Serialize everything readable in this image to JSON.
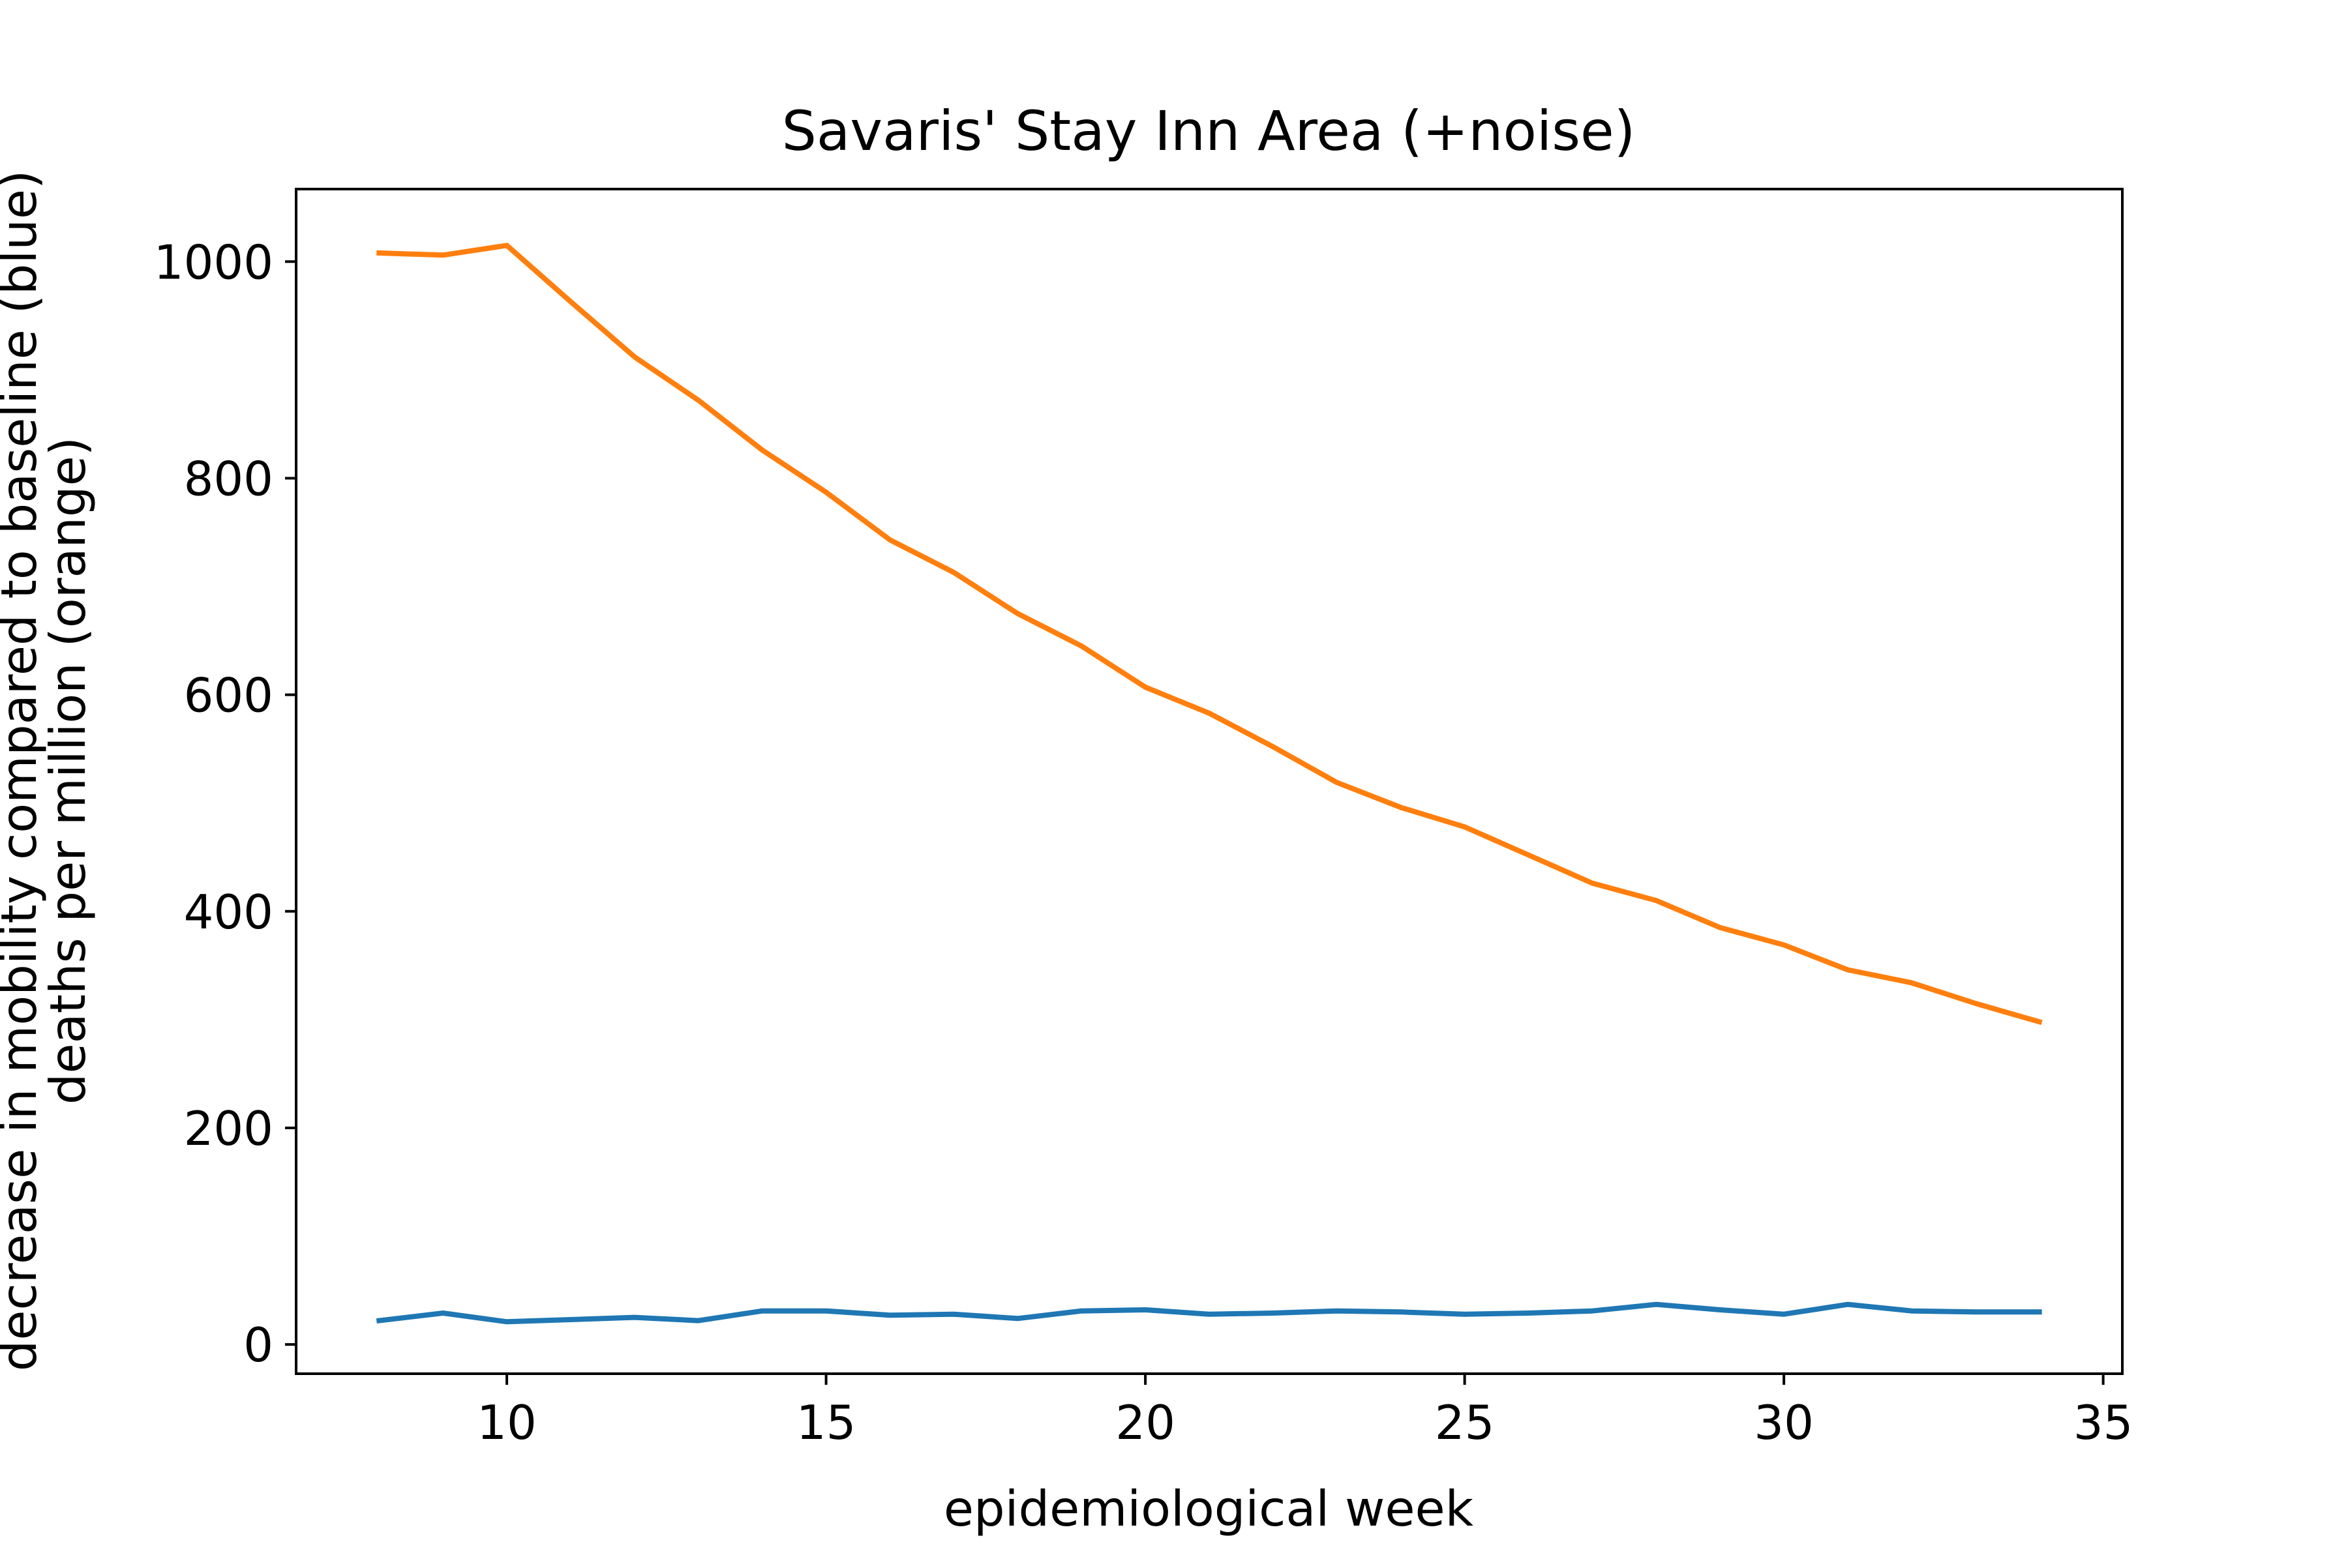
{
  "chart_data": {
    "type": "line",
    "title": "Savaris' Stay Inn Area (+noise)",
    "xlabel": "epidemiological week",
    "ylabel_line1": "decrease in mobility compared to baseline (blue)",
    "ylabel_line2": "deaths per million (orange)",
    "xlim": [
      6.7,
      35.3
    ],
    "ylim": [
      -27,
      1067
    ],
    "xticks": [
      10,
      15,
      20,
      25,
      30,
      35
    ],
    "yticks": [
      0,
      200,
      400,
      600,
      800,
      1000
    ],
    "grid": false,
    "x": [
      8,
      9,
      10,
      11,
      12,
      13,
      14,
      15,
      16,
      17,
      18,
      19,
      20,
      21,
      22,
      23,
      24,
      25,
      26,
      27,
      28,
      29,
      30,
      31,
      32,
      33,
      34
    ],
    "series": [
      {
        "color": "#ff7f0e",
        "values": [
          1008,
          1006,
          1015,
          963,
          912,
          872,
          826,
          787,
          743,
          713,
          675,
          645,
          607,
          583,
          552,
          519,
          496,
          478,
          452,
          426,
          410,
          385,
          369,
          346,
          334,
          315,
          298
        ]
      },
      {
        "color": "#1f77b4",
        "values": [
          22,
          29,
          21,
          23,
          25,
          22,
          31,
          31,
          27,
          28,
          24,
          31,
          32,
          28,
          29,
          31,
          30,
          28,
          29,
          31,
          37,
          32,
          28,
          37,
          31,
          30,
          30
        ]
      }
    ]
  }
}
